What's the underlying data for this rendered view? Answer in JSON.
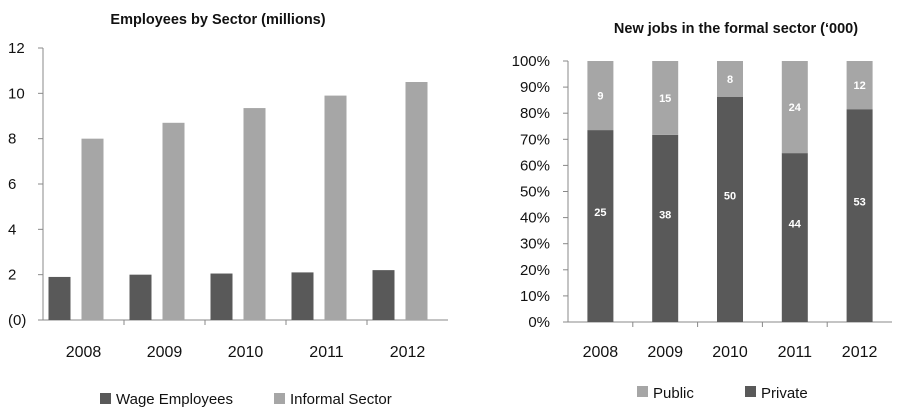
{
  "chart_data": [
    {
      "type": "bar",
      "title": "Employees by Sector (millions)",
      "categories": [
        "2008",
        "2009",
        "2010",
        "2011",
        "2012"
      ],
      "series": [
        {
          "name": "Wage Employees",
          "values": [
            1.9,
            2.0,
            2.05,
            2.1,
            2.2
          ],
          "color": "#595959"
        },
        {
          "name": "Informal Sector",
          "values": [
            8.0,
            8.7,
            9.35,
            9.9,
            10.5
          ],
          "color": "#a6a6a6"
        }
      ],
      "yticks": [
        "(0)",
        "2",
        "4",
        "6",
        "8",
        "10",
        "12"
      ],
      "ylim": [
        0,
        12
      ],
      "grid": false,
      "legend": "bottom"
    },
    {
      "type": "bar",
      "stacked": "percent",
      "title": "New jobs in the formal sector (‘000)",
      "categories": [
        "2008",
        "2009",
        "2010",
        "2011",
        "2012"
      ],
      "series": [
        {
          "name": "Private",
          "values": [
            25,
            38,
            50,
            44,
            53
          ],
          "color": "#595959"
        },
        {
          "name": "Public",
          "values": [
            9,
            15,
            8,
            24,
            12
          ],
          "color": "#a6a6a6"
        }
      ],
      "legend_order": [
        "Public",
        "Private"
      ],
      "yticks": [
        "0%",
        "10%",
        "20%",
        "30%",
        "40%",
        "50%",
        "60%",
        "70%",
        "80%",
        "90%",
        "100%"
      ],
      "ylim": [
        0,
        100
      ],
      "grid": false,
      "legend": "bottom"
    }
  ]
}
